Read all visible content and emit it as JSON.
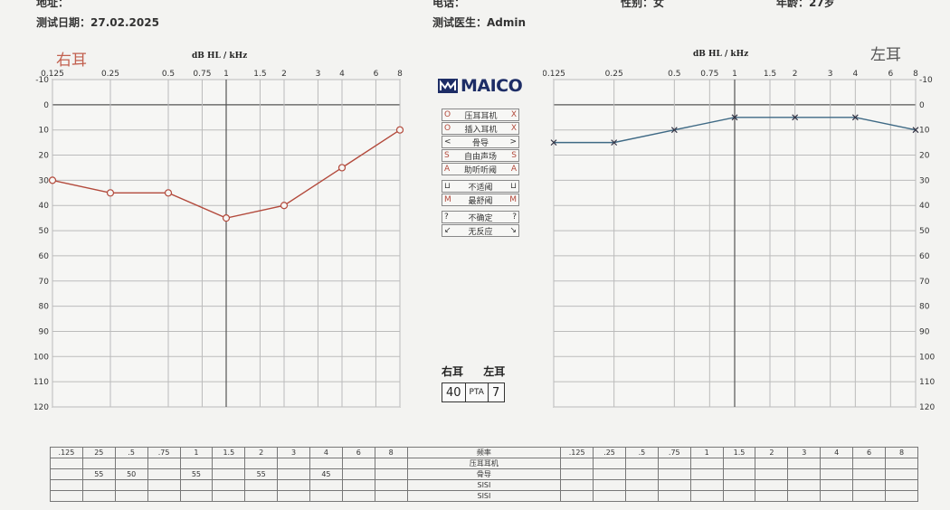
{
  "header": {
    "address_label": "地址：",
    "phone_label": "电话：",
    "gender": "性别：女",
    "age": "年龄：27岁",
    "test_date": "测试日期：27.02.2025",
    "doctor": "测试医生：Admin"
  },
  "brand": "MAICO",
  "legend": [
    {
      "left": "O",
      "text": "压耳耳机",
      "right": "X",
      "color": "#b34a3c"
    },
    {
      "left": "O",
      "text": "插入耳机",
      "right": "X",
      "color": "#b34a3c"
    },
    {
      "left": "<",
      "text": "骨导",
      "right": ">",
      "color": "#333"
    },
    {
      "left": "S",
      "text": "自由声场",
      "right": "S",
      "color": "#b34a3c"
    },
    {
      "left": "A",
      "text": "助听听阈",
      "right": "A",
      "color": "#b34a3c"
    },
    {
      "left": "⊔",
      "text": "不适阈",
      "right": "⊔",
      "color": "#333"
    },
    {
      "left": "M",
      "text": "最舒阈",
      "right": "M",
      "color": "#b34a3c"
    },
    {
      "left": "?",
      "text": "不确定",
      "right": "?",
      "color": "#333"
    },
    {
      "left": "↙",
      "text": "无反应",
      "right": "↘",
      "color": "#333"
    }
  ],
  "pta": {
    "right_label": "右耳",
    "left_label": "左耳",
    "right_value": "40",
    "label": "PTA",
    "left_value": "7"
  },
  "chart_data": [
    {
      "type": "line",
      "title": "右耳",
      "xlabel": "dB HL / kHz",
      "x_ticks": [
        "0.125",
        "0.25",
        "0.5",
        "0.75",
        "1",
        "1.5",
        "2",
        "3",
        "4",
        "6",
        "8"
      ],
      "y_ticks": [
        -10,
        0,
        10,
        20,
        30,
        40,
        50,
        60,
        70,
        80,
        90,
        100,
        110,
        120
      ],
      "ylim": [
        -10,
        120
      ],
      "y_inverted": true,
      "x_scale": "log",
      "color": "#b34a3c",
      "marker": "O",
      "series": [
        {
          "x": [
            0.125,
            0.25,
            0.5,
            1,
            2,
            4,
            8
          ],
          "y": [
            30,
            35,
            35,
            45,
            40,
            25,
            10
          ]
        }
      ]
    },
    {
      "type": "line",
      "title": "左耳",
      "xlabel": "dB HL / kHz",
      "x_ticks": [
        "0.125",
        "0.25",
        "0.5",
        "0.75",
        "1",
        "1.5",
        "2",
        "3",
        "4",
        "6",
        "8"
      ],
      "y_ticks": [
        -10,
        0,
        10,
        20,
        30,
        40,
        50,
        60,
        70,
        80,
        90,
        100,
        110,
        120
      ],
      "ylim": [
        -10,
        120
      ],
      "y_inverted": true,
      "x_scale": "log",
      "color": "#3f6a85",
      "marker": "X",
      "series": [
        {
          "x": [
            0.125,
            0.25,
            0.5,
            1,
            2,
            4,
            8
          ],
          "y": [
            15,
            15,
            10,
            5,
            5,
            5,
            10
          ]
        }
      ]
    }
  ],
  "bottom_table": {
    "freqs_left": [
      ".125",
      "25",
      ".5",
      ".75",
      "1",
      "1.5",
      "2",
      "3",
      "4",
      "6",
      "8"
    ],
    "row2_left": [
      "",
      "55",
      "50",
      "",
      "55",
      "",
      "55",
      "",
      "45",
      "",
      ""
    ],
    "mid_labels": [
      "频率",
      "压耳耳机",
      "骨导",
      "SISI",
      "SISI"
    ],
    "freqs_right": [
      ".125",
      ".25",
      ".5",
      ".75",
      "1",
      "1.5",
      "2",
      "3",
      "4",
      "6",
      "8"
    ]
  }
}
